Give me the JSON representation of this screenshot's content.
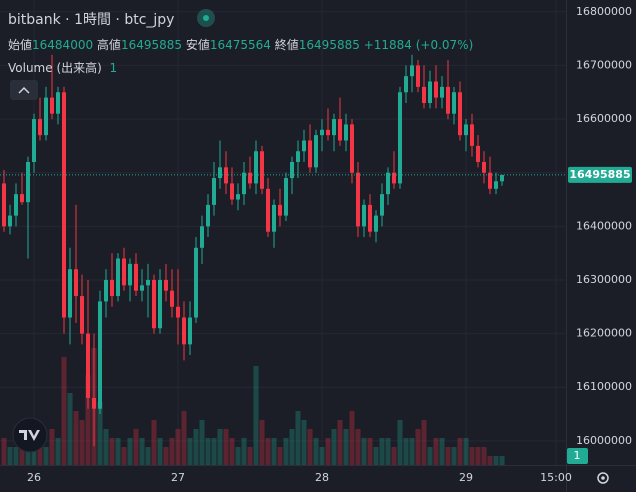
{
  "chart_data": {
    "type": "candlestick",
    "title": "bitbank · 1時間 · btc_jpy",
    "ohlc_labels": [
      "始値",
      "高値",
      "安値",
      "終値"
    ],
    "change_label": "+11884 (+0.07%)",
    "volume_label": "Volume (出来高)",
    "up_color": "#22ab94",
    "down_color": "#f23645",
    "grid": true,
    "categories": [
      null,
      null,
      null,
      null,
      null,
      "26",
      null,
      null,
      null,
      null,
      null,
      null,
      null,
      null,
      null,
      null,
      null,
      null,
      null,
      null,
      null,
      null,
      null,
      null,
      null,
      null,
      null,
      null,
      null,
      "27",
      null,
      null,
      null,
      null,
      null,
      null,
      null,
      null,
      null,
      null,
      null,
      null,
      null,
      null,
      null,
      null,
      null,
      null,
      null,
      null,
      null,
      null,
      null,
      "28",
      null,
      null,
      null,
      null,
      null,
      null,
      null,
      null,
      null,
      null,
      null,
      null,
      null,
      null,
      null,
      null,
      null,
      null,
      null,
      null,
      null,
      null,
      null,
      "29",
      null,
      null,
      null,
      null,
      null,
      null,
      null,
      null,
      null,
      null,
      null,
      null,
      null,
      null,
      "15:00"
    ],
    "open": [
      16480000,
      16400000,
      16420000,
      16460000,
      16445000,
      16520000,
      16600000,
      16570000,
      16640000,
      16610000,
      16650000,
      16230000,
      16320000,
      16270000,
      16200000,
      16080000,
      16060000,
      16260000,
      16300000,
      16270000,
      16340000,
      16290000,
      16330000,
      16280000,
      16290000,
      16300000,
      16210000,
      16300000,
      16280000,
      16250000,
      16230000,
      16180000,
      16230000,
      16360000,
      16400000,
      16440000,
      16490000,
      16510000,
      16480000,
      16450000,
      16460000,
      16500000,
      16480000,
      16540000,
      16470000,
      16390000,
      16440000,
      16420000,
      16490000,
      16520000,
      16540000,
      16560000,
      16510000,
      16570000,
      16580000,
      16570000,
      16600000,
      16560000,
      16590000,
      16500000,
      16400000,
      16440000,
      16390000,
      16420000,
      16460000,
      16500000,
      16480000,
      16650000,
      16680000,
      16700000,
      16660000,
      16630000,
      16670000,
      16640000,
      16660000,
      16610000,
      16650000,
      16570000,
      16590000,
      16550000,
      16520000,
      16500000,
      16470000,
      16484000,
      null,
      null,
      null,
      null,
      null,
      null,
      null,
      null,
      null
    ],
    "high": [
      16505000,
      16440000,
      16480000,
      16500000,
      16530000,
      16610000,
      16640000,
      16660000,
      16720000,
      16660000,
      16660000,
      16360000,
      16440000,
      16310000,
      16300000,
      16200000,
      16280000,
      16320000,
      16350000,
      16350000,
      16360000,
      16340000,
      16350000,
      16320000,
      16330000,
      16310000,
      16320000,
      16330000,
      16320000,
      16320000,
      16260000,
      16260000,
      16380000,
      16420000,
      16460000,
      16520000,
      16560000,
      16540000,
      16510000,
      16480000,
      16520000,
      16530000,
      16560000,
      16550000,
      16490000,
      16450000,
      16470000,
      16500000,
      16530000,
      16560000,
      16580000,
      16590000,
      16580000,
      16600000,
      16620000,
      16610000,
      16640000,
      16610000,
      16600000,
      16520000,
      16450000,
      16460000,
      16430000,
      16480000,
      16510000,
      16540000,
      16660000,
      16700000,
      16720000,
      16710000,
      16700000,
      16690000,
      16700000,
      16680000,
      16710000,
      16660000,
      16670000,
      16600000,
      16610000,
      16570000,
      16540000,
      16530000,
      16500000,
      16495885,
      null,
      null,
      null,
      null,
      null,
      null,
      null,
      null,
      null
    ],
    "low": [
      16390000,
      16385000,
      16400000,
      16440000,
      16340000,
      16500000,
      16560000,
      16560000,
      16600000,
      16590000,
      16200000,
      16180000,
      16220000,
      16180000,
      16060000,
      15990000,
      16050000,
      16230000,
      16250000,
      16260000,
      16280000,
      16260000,
      16270000,
      16260000,
      16230000,
      16200000,
      16200000,
      16260000,
      16230000,
      16180000,
      16150000,
      16160000,
      16220000,
      16330000,
      16380000,
      16420000,
      16470000,
      16460000,
      16440000,
      16430000,
      16440000,
      16470000,
      16460000,
      16460000,
      16380000,
      16360000,
      16400000,
      16410000,
      16460000,
      16490000,
      16520000,
      16500000,
      16500000,
      16540000,
      16560000,
      16540000,
      16550000,
      16540000,
      16480000,
      16380000,
      16380000,
      16380000,
      16370000,
      16400000,
      16440000,
      16470000,
      16470000,
      16630000,
      16650000,
      16650000,
      16620000,
      16620000,
      16620000,
      16620000,
      16600000,
      16590000,
      16560000,
      16540000,
      16530000,
      16510000,
      16480000,
      16460000,
      16460000,
      16475564,
      null,
      null,
      null,
      null,
      null,
      null,
      null,
      null,
      null
    ],
    "close": [
      16400000,
      16420000,
      16460000,
      16445000,
      16520000,
      16600000,
      16570000,
      16640000,
      16610000,
      16650000,
      16230000,
      16320000,
      16270000,
      16200000,
      16080000,
      16060000,
      16260000,
      16300000,
      16270000,
      16340000,
      16290000,
      16330000,
      16280000,
      16290000,
      16300000,
      16210000,
      16300000,
      16280000,
      16250000,
      16230000,
      16180000,
      16230000,
      16360000,
      16400000,
      16440000,
      16490000,
      16510000,
      16480000,
      16450000,
      16460000,
      16500000,
      16480000,
      16540000,
      16470000,
      16390000,
      16440000,
      16420000,
      16490000,
      16520000,
      16540000,
      16560000,
      16510000,
      16570000,
      16580000,
      16570000,
      16600000,
      16560000,
      16590000,
      16500000,
      16400000,
      16440000,
      16390000,
      16420000,
      16460000,
      16500000,
      16480000,
      16650000,
      16680000,
      16700000,
      16660000,
      16630000,
      16670000,
      16640000,
      16660000,
      16610000,
      16650000,
      16570000,
      16590000,
      16550000,
      16520000,
      16500000,
      16470000,
      16484000,
      16495885,
      null,
      null,
      null,
      null,
      null,
      null,
      null,
      null,
      null
    ],
    "volume": [
      3,
      2,
      2,
      3,
      4,
      5,
      3,
      2,
      4,
      3,
      12,
      8,
      6,
      5,
      10,
      13,
      7,
      4,
      3,
      3,
      2,
      3,
      4,
      3,
      2,
      5,
      3,
      2,
      3,
      4,
      6,
      3,
      4,
      5,
      3,
      3,
      4,
      4,
      3,
      2,
      3,
      2,
      11,
      5,
      3,
      3,
      2,
      3,
      4,
      6,
      5,
      4,
      3,
      2,
      3,
      4,
      5,
      4,
      6,
      4,
      3,
      3,
      2,
      3,
      3,
      2,
      5,
      3,
      3,
      4,
      5,
      2,
      3,
      3,
      2,
      2,
      3,
      3,
      2,
      2,
      2,
      1,
      1,
      1,
      null,
      null,
      null,
      null,
      null,
      null,
      null,
      null,
      null
    ],
    "ylim": [
      15955000,
      16822000
    ],
    "yticks": [
      16000000,
      16100000,
      16200000,
      16300000,
      16400000,
      16500000,
      16600000,
      16700000,
      16800000
    ]
  }
}
